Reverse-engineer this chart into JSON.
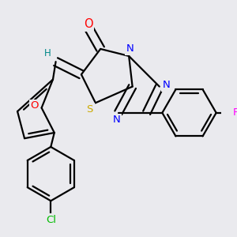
{
  "background_color": "#eaeaee",
  "bond_color": "#000000",
  "atom_colors": {
    "O": "#ff0000",
    "N": "#0000ff",
    "S": "#ccaa00",
    "Cl": "#00bb00",
    "F": "#ff00ff",
    "H": "#008888",
    "C": "#000000"
  },
  "figsize": [
    3.0,
    3.0
  ],
  "dpi": 100
}
